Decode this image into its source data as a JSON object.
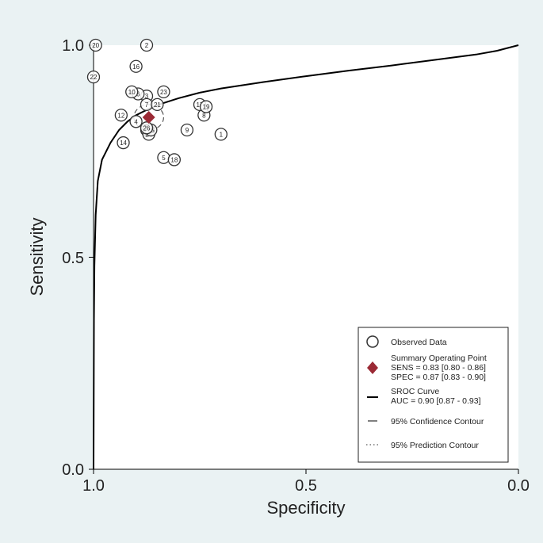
{
  "chart_data": {
    "type": "scatter",
    "xlabel": "Specificity",
    "ylabel": "Sensitivity",
    "xlim": [
      1.0,
      0.0
    ],
    "ylim": [
      0.0,
      1.0
    ],
    "x_ticks": [
      "1.0",
      "0.5",
      "0.0"
    ],
    "y_ticks": [
      "0.0",
      "0.5",
      "1.0"
    ],
    "grid": false,
    "legend_position": "bottom-right",
    "colors": {
      "background": "#eaf2f3",
      "plot_area": "#ffffff",
      "summary_point": "#9b2a35",
      "curve": "#000000"
    },
    "observed_data": [
      {
        "label": "1",
        "specificity": 0.7,
        "sensitivity": 0.79
      },
      {
        "label": "2",
        "specificity": 0.875,
        "sensitivity": 1.0
      },
      {
        "label": "3",
        "specificity": 0.875,
        "sensitivity": 0.88
      },
      {
        "label": "4",
        "specificity": 0.9,
        "sensitivity": 0.82
      },
      {
        "label": "5",
        "specificity": 0.835,
        "sensitivity": 0.735
      },
      {
        "label": "6",
        "specificity": 0.895,
        "sensitivity": 0.885
      },
      {
        "label": "7",
        "specificity": 0.875,
        "sensitivity": 0.86
      },
      {
        "label": "8",
        "specificity": 0.74,
        "sensitivity": 0.835
      },
      {
        "label": "9",
        "specificity": 0.78,
        "sensitivity": 0.8
      },
      {
        "label": "10",
        "specificity": 0.91,
        "sensitivity": 0.89
      },
      {
        "label": "11",
        "specificity": 0.875,
        "sensitivity": 0.8
      },
      {
        "label": "12",
        "specificity": 0.935,
        "sensitivity": 0.835
      },
      {
        "label": "13",
        "specificity": 0.87,
        "sensitivity": 0.8
      },
      {
        "label": "14",
        "specificity": 0.93,
        "sensitivity": 0.77
      },
      {
        "label": "15",
        "specificity": 0.87,
        "sensitivity": 0.8
      },
      {
        "label": "16",
        "specificity": 0.9,
        "sensitivity": 0.95
      },
      {
        "label": "17",
        "specificity": 0.75,
        "sensitivity": 0.86
      },
      {
        "label": "18",
        "specificity": 0.81,
        "sensitivity": 0.73
      },
      {
        "label": "19",
        "specificity": 0.735,
        "sensitivity": 0.855
      },
      {
        "label": "20",
        "specificity": 0.995,
        "sensitivity": 1.0
      },
      {
        "label": "21",
        "specificity": 0.85,
        "sensitivity": 0.86
      },
      {
        "label": "22",
        "specificity": 1.0,
        "sensitivity": 0.925
      },
      {
        "label": "23",
        "specificity": 0.835,
        "sensitivity": 0.89
      },
      {
        "label": "24",
        "specificity": 0.87,
        "sensitivity": 0.79
      },
      {
        "label": "25",
        "specificity": 0.865,
        "sensitivity": 0.8
      },
      {
        "label": "26",
        "specificity": 0.875,
        "sensitivity": 0.805
      }
    ],
    "summary_point": {
      "specificity": 0.87,
      "sensitivity": 0.83
    },
    "sroc_curve": {
      "points": [
        [
          1.0,
          0.0
        ],
        [
          0.999,
          0.35
        ],
        [
          0.998,
          0.48
        ],
        [
          0.995,
          0.6
        ],
        [
          0.99,
          0.68
        ],
        [
          0.98,
          0.73
        ],
        [
          0.96,
          0.77
        ],
        [
          0.94,
          0.8
        ],
        [
          0.92,
          0.82
        ],
        [
          0.9,
          0.835
        ],
        [
          0.87,
          0.85
        ],
        [
          0.84,
          0.862
        ],
        [
          0.8,
          0.875
        ],
        [
          0.75,
          0.888
        ],
        [
          0.7,
          0.898
        ],
        [
          0.6,
          0.913
        ],
        [
          0.5,
          0.927
        ],
        [
          0.4,
          0.94
        ],
        [
          0.3,
          0.952
        ],
        [
          0.2,
          0.965
        ],
        [
          0.1,
          0.978
        ],
        [
          0.05,
          0.987
        ],
        [
          0.0,
          1.0
        ]
      ]
    },
    "confidence_contour": {
      "center_specificity": 0.87,
      "center_sensitivity": 0.83,
      "radius_specificity": 0.035,
      "radius_sensitivity": 0.03
    },
    "legend": {
      "observed": "Observed Data",
      "summary_title": "Summary Operating Point",
      "summary_sens": "SENS = 0.83 [0.80 - 0.86]",
      "summary_spec": "SPEC = 0.87 [0.83 - 0.90]",
      "sroc_title": "SROC Curve",
      "sroc_auc": "AUC = 0.90 [0.87 - 0.93]",
      "confidence": "95% Confidence Contour",
      "prediction": "95% Prediction Contour"
    }
  }
}
